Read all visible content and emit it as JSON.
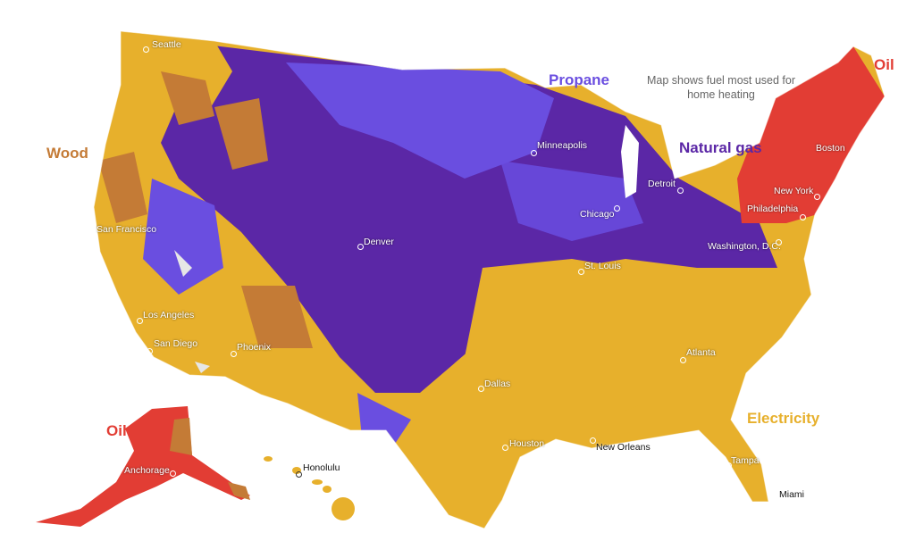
{
  "note": "Map shows fuel most used for home heating",
  "colors": {
    "electricity": "#e7b02c",
    "natural_gas": "#5b27a6",
    "propane": "#6a4ee0",
    "wood": "#c47b36",
    "oil": "#e23d34",
    "no_data": "#e6e6e6"
  },
  "fuel_labels": {
    "propane": "Propane",
    "natural_gas": "Natural gas",
    "wood": "Wood",
    "oil_northeast": "Oil",
    "oil_alaska": "Oil",
    "electricity": "Electricity"
  },
  "cities": [
    {
      "name": "Seattle"
    },
    {
      "name": "San Francisco"
    },
    {
      "name": "Los Angeles"
    },
    {
      "name": "San Diego"
    },
    {
      "name": "Phoenix"
    },
    {
      "name": "Denver"
    },
    {
      "name": "Dallas"
    },
    {
      "name": "Houston"
    },
    {
      "name": "New Orleans"
    },
    {
      "name": "St. Louis"
    },
    {
      "name": "Minneapolis"
    },
    {
      "name": "Chicago"
    },
    {
      "name": "Detroit"
    },
    {
      "name": "Atlanta"
    },
    {
      "name": "Tampa"
    },
    {
      "name": "Miami"
    },
    {
      "name": "Washington, D.C."
    },
    {
      "name": "Philadelphia"
    },
    {
      "name": "New York"
    },
    {
      "name": "Boston"
    },
    {
      "name": "Anchorage"
    },
    {
      "name": "Honolulu"
    }
  ]
}
